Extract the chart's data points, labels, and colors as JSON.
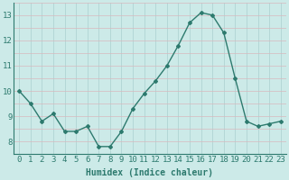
{
  "x": [
    0,
    1,
    2,
    3,
    4,
    5,
    6,
    7,
    8,
    9,
    10,
    11,
    12,
    13,
    14,
    15,
    16,
    17,
    18,
    19,
    20,
    21,
    22,
    23
  ],
  "y": [
    10.0,
    9.5,
    8.8,
    9.1,
    8.4,
    8.4,
    8.6,
    7.8,
    7.8,
    8.4,
    9.3,
    9.9,
    10.4,
    11.0,
    11.8,
    12.7,
    13.1,
    13.0,
    12.3,
    10.5,
    8.8,
    8.6,
    8.7,
    8.8
  ],
  "xlabel": "Humidex (Indice chaleur)",
  "xlim": [
    -0.5,
    23.5
  ],
  "ylim": [
    7.5,
    13.5
  ],
  "yticks": [
    8,
    9,
    10,
    11,
    12,
    13
  ],
  "xticks": [
    0,
    1,
    2,
    3,
    4,
    5,
    6,
    7,
    8,
    9,
    10,
    11,
    12,
    13,
    14,
    15,
    16,
    17,
    18,
    19,
    20,
    21,
    22,
    23
  ],
  "line_color": "#2d7a6e",
  "bg_color": "#cceae8",
  "grid_color_vertical": "#aacfcf",
  "grid_color_horizontal": "#d8b8be",
  "xlabel_fontsize": 7,
  "tick_fontsize": 6.5
}
